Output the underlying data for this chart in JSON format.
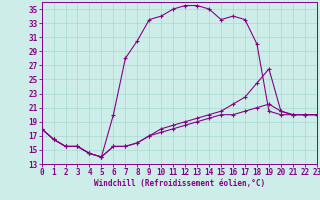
{
  "xlabel": "Windchill (Refroidissement éolien,°C)",
  "bg_color": "#cdeee8",
  "grid_color": "#aad8d2",
  "line_color": "#880088",
  "hours": [
    0,
    1,
    2,
    3,
    4,
    5,
    6,
    7,
    8,
    9,
    10,
    11,
    12,
    13,
    14,
    15,
    16,
    17,
    18,
    19,
    20,
    21,
    22,
    23
  ],
  "line1": [
    18.0,
    16.5,
    15.5,
    15.5,
    14.5,
    14.0,
    20.0,
    28.0,
    30.5,
    33.5,
    34.0,
    35.0,
    35.5,
    35.5,
    35.0,
    33.5,
    34.0,
    33.5,
    30.0,
    20.5,
    20.0,
    20.0,
    20.0,
    20.0
  ],
  "line2": [
    18.0,
    16.5,
    15.5,
    15.5,
    14.5,
    14.0,
    15.5,
    15.5,
    16.0,
    17.0,
    18.0,
    18.5,
    19.0,
    19.5,
    20.0,
    20.5,
    21.5,
    22.5,
    24.5,
    26.5,
    20.5,
    20.0,
    20.0,
    20.0
  ],
  "line3": [
    18.0,
    16.5,
    15.5,
    15.5,
    14.5,
    14.0,
    15.5,
    15.5,
    16.0,
    17.0,
    17.5,
    18.0,
    18.5,
    19.0,
    19.5,
    20.0,
    20.0,
    20.5,
    21.0,
    21.5,
    20.5,
    20.0,
    20.0,
    20.0
  ],
  "ylim": [
    13,
    36
  ],
  "yticks": [
    13,
    15,
    17,
    19,
    21,
    23,
    25,
    27,
    29,
    31,
    33,
    35
  ],
  "xlim": [
    0,
    23
  ],
  "xticks": [
    0,
    1,
    2,
    3,
    4,
    5,
    6,
    7,
    8,
    9,
    10,
    11,
    12,
    13,
    14,
    15,
    16,
    17,
    18,
    19,
    20,
    21,
    22,
    23
  ],
  "tick_fontsize": 5.5,
  "xlabel_fontsize": 5.5
}
